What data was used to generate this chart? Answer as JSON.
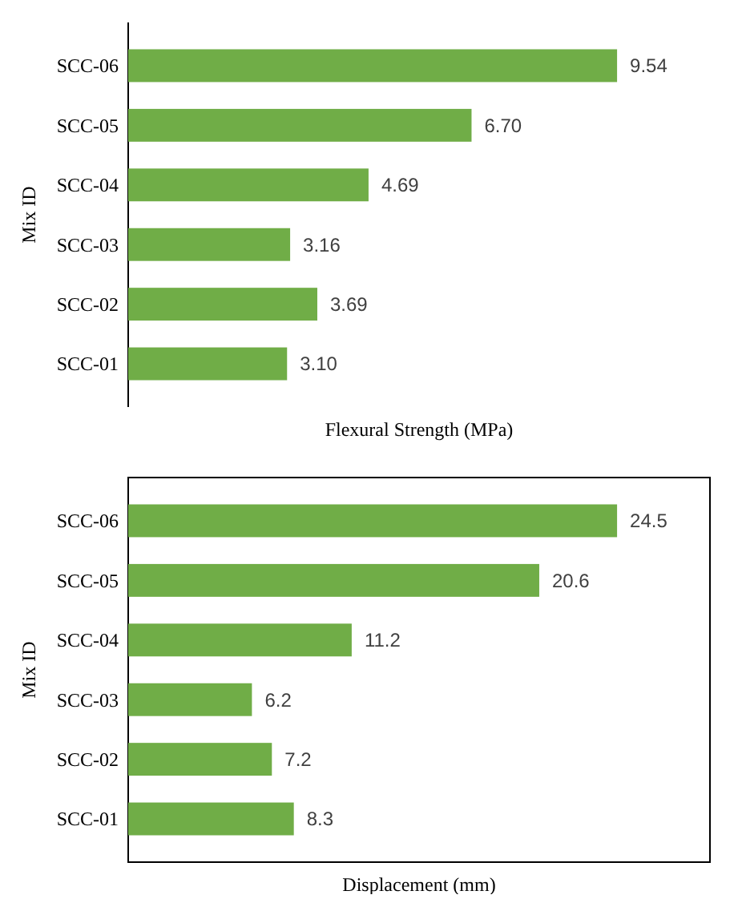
{
  "chart_data": [
    {
      "type": "bar",
      "orientation": "horizontal",
      "xlabel": "Flexural Strength (MPa)",
      "ylabel": "Mix ID",
      "categories": [
        "SCC-06",
        "SCC-05",
        "SCC-04",
        "SCC-03",
        "SCC-02",
        "SCC-01"
      ],
      "values": [
        9.54,
        6.7,
        4.69,
        3.16,
        3.69,
        3.1
      ],
      "value_labels": [
        "9.54",
        "6.70",
        "4.69",
        "3.16",
        "3.69",
        "3.10"
      ],
      "color": "#70ad47",
      "tick_labels": "y"
    },
    {
      "type": "bar",
      "orientation": "horizontal",
      "xlabel": "Displacement (mm)",
      "ylabel": "Mix ID",
      "categories": [
        "SCC-06",
        "SCC-05",
        "SCC-04",
        "SCC-03",
        "SCC-02",
        "SCC-01"
      ],
      "values": [
        24.5,
        20.6,
        11.2,
        6.2,
        7.2,
        8.3
      ],
      "data_labels": true,
      "color": "#70ad47",
      "tick_labels": "y"
    }
  ]
}
